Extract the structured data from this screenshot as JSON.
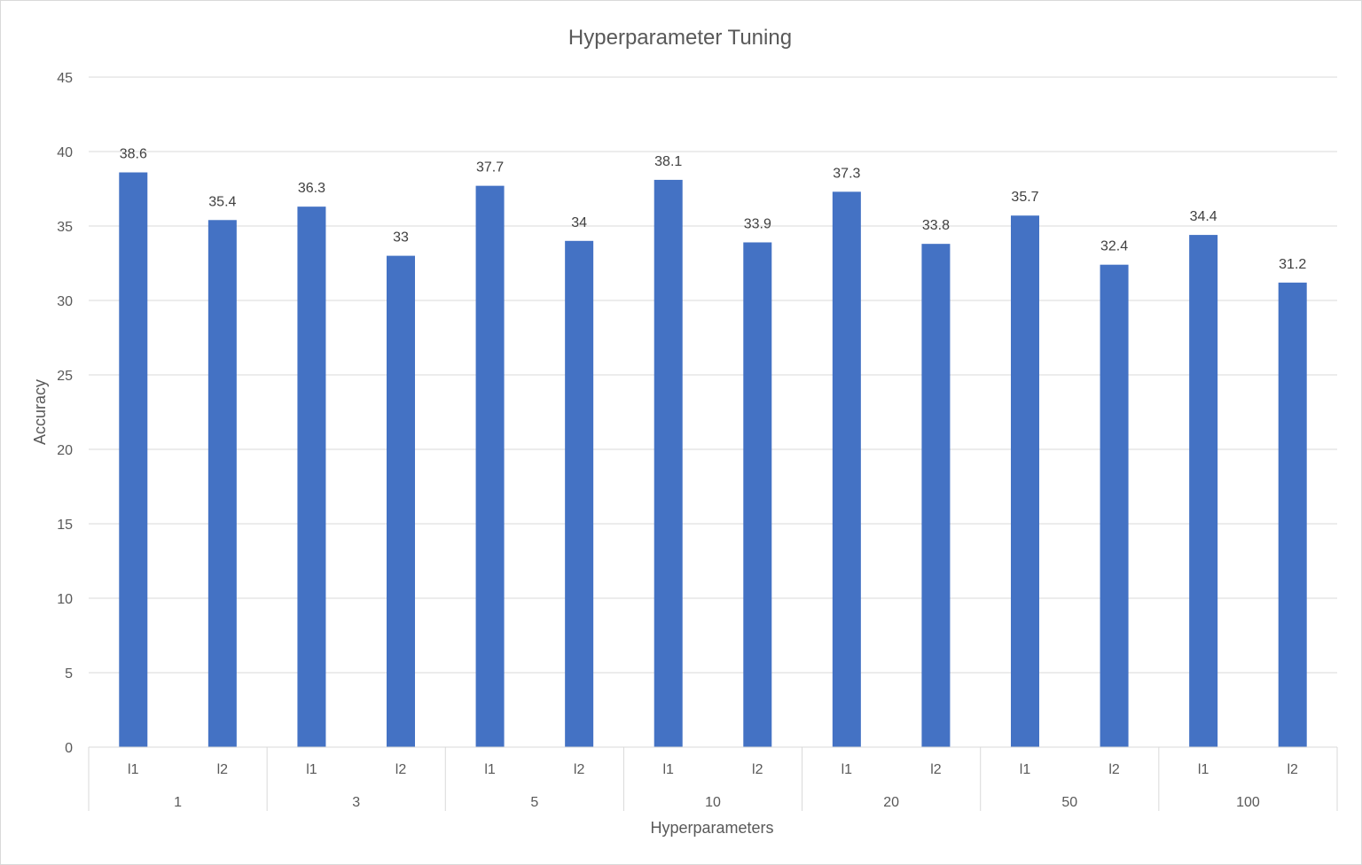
{
  "chart_data": {
    "type": "bar",
    "title": "Hyperparameter Tuning",
    "xlabel": "Hyperparameters",
    "ylabel": "Accuracy",
    "ylim": [
      0,
      45
    ],
    "yticks": [
      "0",
      "5",
      "10",
      "15",
      "20",
      "25",
      "30",
      "35",
      "40",
      "45"
    ],
    "grid": true,
    "groups": [
      {
        "name": "1",
        "categories": [
          "l1",
          "l2"
        ],
        "values": [
          38.6,
          35.4
        ]
      },
      {
        "name": "3",
        "categories": [
          "l1",
          "l2"
        ],
        "values": [
          36.3,
          33
        ]
      },
      {
        "name": "5",
        "categories": [
          "l1",
          "l2"
        ],
        "values": [
          37.7,
          34
        ]
      },
      {
        "name": "10",
        "categories": [
          "l1",
          "l2"
        ],
        "values": [
          38.1,
          33.9
        ]
      },
      {
        "name": "20",
        "categories": [
          "l1",
          "l2"
        ],
        "values": [
          37.3,
          33.8
        ]
      },
      {
        "name": "50",
        "categories": [
          "l1",
          "l2"
        ],
        "values": [
          35.7,
          32.4
        ]
      },
      {
        "name": "100",
        "categories": [
          "l1",
          "l2"
        ],
        "values": [
          34.4,
          31.2
        ]
      }
    ],
    "colors": {
      "bar": "#4472C4",
      "grid": "#d9d9d9",
      "text": "#595959",
      "data_label": "#404040"
    }
  }
}
